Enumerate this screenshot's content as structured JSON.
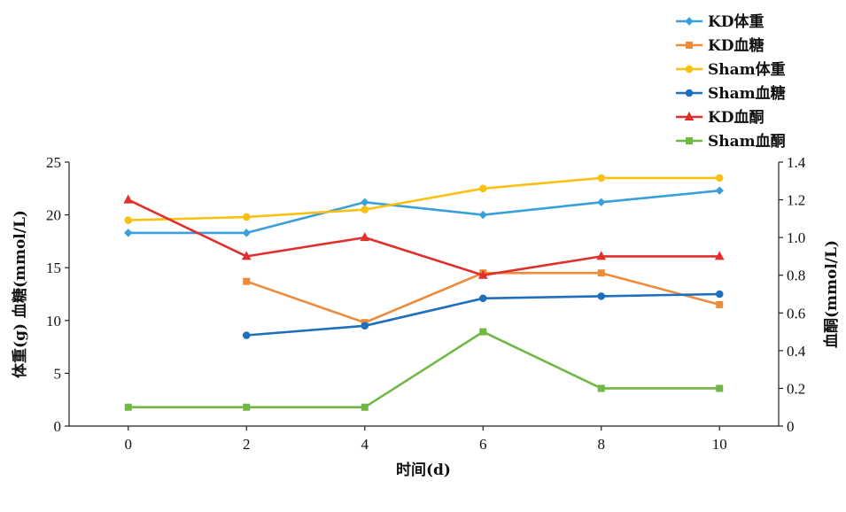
{
  "chart_data": {
    "type": "line",
    "x": [
      0,
      2,
      4,
      6,
      8,
      10
    ],
    "xlabel": "时间(d)",
    "ylabel_left": "体重(g) 血糖(mmol/L)",
    "ylabel_right": "血酮(mmol/L)",
    "xlim": [
      -1,
      11
    ],
    "ylim_left": [
      0,
      25
    ],
    "ylim_right": [
      0,
      1.4
    ],
    "x_ticks": [
      "0",
      "2",
      "4",
      "6",
      "8",
      "10"
    ],
    "y_left_ticks": [
      "0",
      "5",
      "10",
      "15",
      "20",
      "25"
    ],
    "y_right_ticks": [
      "0",
      "0.2",
      "0.4",
      "0.6",
      "0.8",
      "1.0",
      "1.2",
      "1.4"
    ],
    "legend_position": "top-right",
    "series": [
      {
        "name": "KD体重",
        "axis": "left",
        "color": "#3A9FDB",
        "marker": "diamond",
        "x": [
          0,
          2,
          4,
          6,
          8,
          10
        ],
        "values": [
          18.3,
          18.3,
          21.2,
          20.0,
          21.2,
          22.3
        ]
      },
      {
        "name": "KD血糖",
        "axis": "left",
        "color": "#ED8B3B",
        "marker": "square",
        "x": [
          2,
          4,
          6,
          8,
          10
        ],
        "values": [
          13.7,
          9.8,
          14.5,
          14.5,
          11.5
        ]
      },
      {
        "name": "Sham体重",
        "axis": "left",
        "color": "#FAC010",
        "marker": "circle",
        "x": [
          0,
          2,
          4,
          6,
          8,
          10
        ],
        "values": [
          19.5,
          19.8,
          20.5,
          22.5,
          23.5,
          23.5
        ]
      },
      {
        "name": "Sham血糖",
        "axis": "left",
        "color": "#1F6FBF",
        "marker": "circle",
        "x": [
          2,
          4,
          6,
          8,
          10
        ],
        "values": [
          8.6,
          9.5,
          12.1,
          12.3,
          12.5
        ]
      },
      {
        "name": "KD血酮",
        "axis": "right",
        "color": "#E0302B",
        "marker": "triangle",
        "x": [
          0,
          2,
          4,
          6,
          8,
          10
        ],
        "values": [
          1.2,
          0.9,
          1.0,
          0.8,
          0.9,
          0.9
        ]
      },
      {
        "name": "Sham血酮",
        "axis": "right",
        "color": "#70B844",
        "marker": "square",
        "x": [
          0,
          2,
          4,
          6,
          8,
          10
        ],
        "values": [
          0.1,
          0.1,
          0.1,
          0.5,
          0.2,
          0.2
        ]
      }
    ]
  }
}
